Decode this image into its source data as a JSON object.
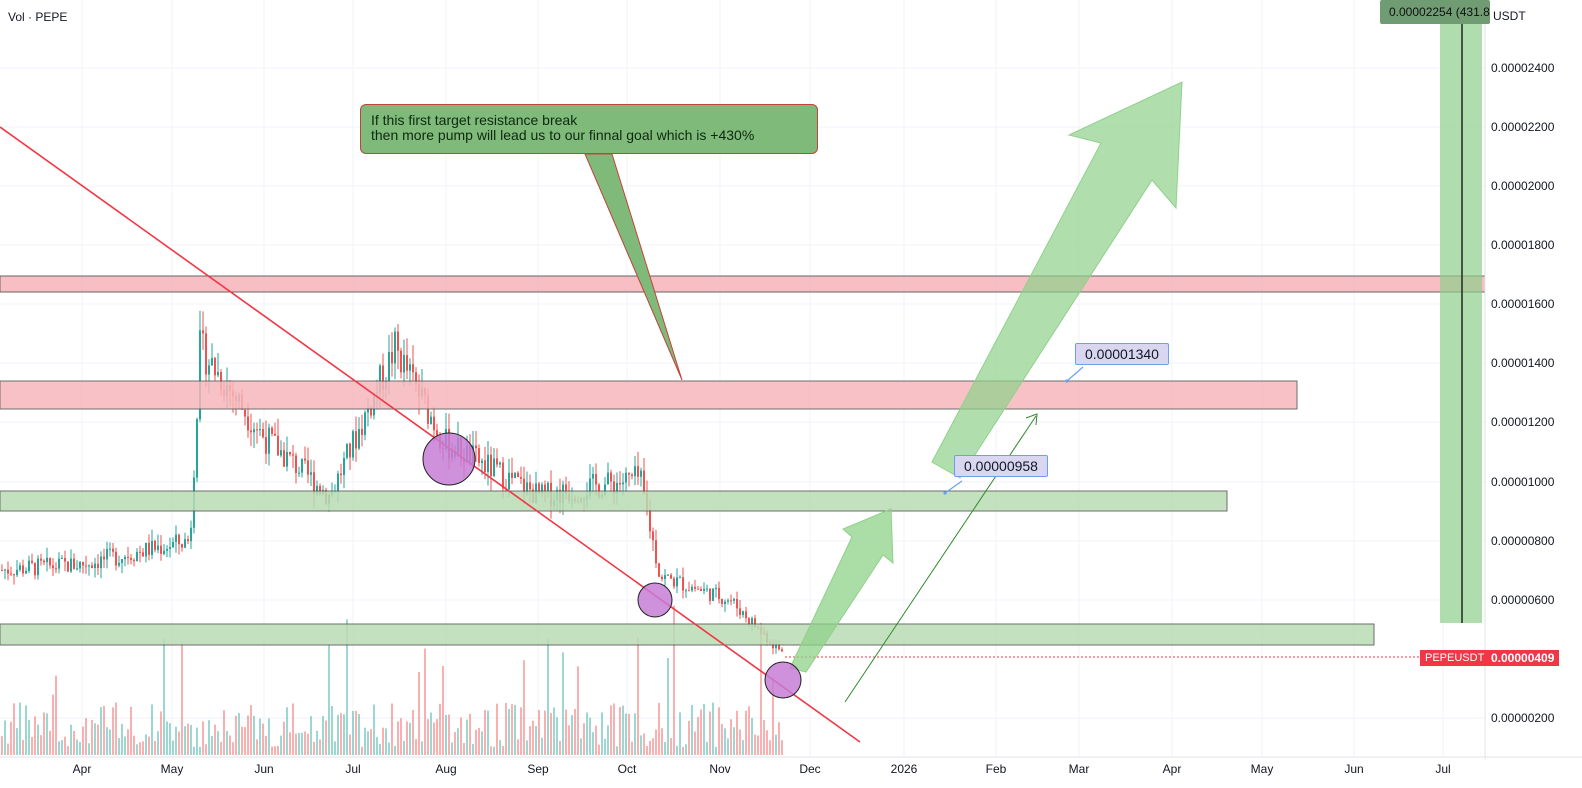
{
  "header": {
    "title": "Vol · PEPE"
  },
  "axis": {
    "currency": "USDT",
    "ticks": [
      "0.00002400",
      "0.00002200",
      "0.00002000",
      "0.00001800",
      "0.00001600",
      "0.00001400",
      "0.00001200",
      "0.00001000",
      "0.00000800",
      "0.00000600",
      "0.00000200"
    ],
    "months": [
      "Apr",
      "May",
      "Jun",
      "Jul",
      "Aug",
      "Sep",
      "Oct",
      "Nov",
      "Dec",
      "2026",
      "Feb",
      "Mar",
      "Apr",
      "May",
      "Jun",
      "Jul"
    ]
  },
  "badges": {
    "top": "0.00002254 (431.8",
    "symbol": "PEPEUSDT",
    "last_price": "0.00000409"
  },
  "annotations": {
    "callout_line1": "If this first target resistance break",
    "callout_line2": "then more pump will lead us to our finnal goal which is +430%",
    "target1": "0.00000958",
    "target2": "0.00001340"
  },
  "colors": {
    "up": "#26a69a",
    "down": "#ef5350",
    "trendline": "#f23645",
    "resistance_zone": "#f7b7bd",
    "support_zone": "#b9dbb4",
    "arrow": "#8fd18a",
    "circle": "#c77dd6"
  },
  "chart_data": {
    "type": "candlestick",
    "symbol": "PEPEUSDT",
    "quote": "USDT",
    "y_range": [
      1.3e-06,
      2.54e-05
    ],
    "last_price": 4.09e-06,
    "zones": [
      {
        "kind": "resistance",
        "from": 1.63e-05,
        "to": 1.69e-05
      },
      {
        "kind": "resistance",
        "from": 1.24e-05,
        "to": 1.33e-05
      },
      {
        "kind": "support",
        "from": 9.1e-06,
        "to": 9.8e-06
      },
      {
        "kind": "support",
        "from": 4.6e-06,
        "to": 5.3e-06
      }
    ],
    "targets": [
      9.58e-06,
      1.34e-05
    ],
    "projection_target_pct": 431.8,
    "price_path": [
      [
        "Mar",
        7e-06
      ],
      [
        "Apr",
        7.2e-06
      ],
      [
        "May",
        8e-06
      ],
      [
        "May",
        1.45e-05
      ],
      [
        "Jun",
        1.15e-05
      ],
      [
        "Jul",
        9.5e-06
      ],
      [
        "Jul",
        1.45e-05
      ],
      [
        "Aug",
        1.13e-05
      ],
      [
        "Sep",
        9.5e-06
      ],
      [
        "Oct",
        1.01e-05
      ],
      [
        "Oct",
        6.8e-06
      ],
      [
        "Nov",
        6e-06
      ],
      [
        "Nov",
        4.1e-06
      ]
    ]
  }
}
